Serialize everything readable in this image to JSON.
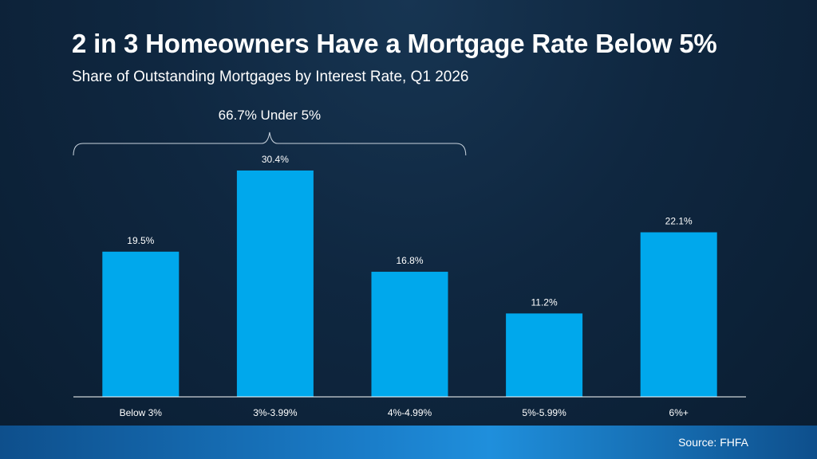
{
  "header": {
    "title": "2 in 3 Homeowners Have a Mortgage Rate Below 5%",
    "subtitle": "Share of Outstanding Mortgages by Interest Rate, Q1 2026"
  },
  "chart_data": {
    "type": "bar",
    "title": "2 in 3 Homeowners Have a Mortgage Rate Below 5%",
    "subtitle": "Share of Outstanding Mortgages by Interest Rate, Q1 2026",
    "categories": [
      "Below 3%",
      "3%-3.99%",
      "4%-4.99%",
      "5%-5.99%",
      "6%+"
    ],
    "values": [
      19.5,
      30.4,
      16.8,
      11.2,
      22.1
    ],
    "value_labels": [
      "19.5%",
      "30.4%",
      "16.8%",
      "11.2%",
      "22.1%"
    ],
    "ylim": [
      0,
      33.5
    ],
    "grid": false,
    "bar_color": "#00a8ec",
    "annotation": {
      "text": "66.7% Under 5%",
      "spans_categories": [
        "Below 3%",
        "3%-3.99%",
        "4%-4.99%"
      ]
    }
  },
  "footer": {
    "source": "Source: FHFA"
  },
  "colors": {
    "background": "#0f2740",
    "bar": "#00a8ec",
    "text": "#ffffff",
    "footer_band": "#1a7dc9"
  }
}
